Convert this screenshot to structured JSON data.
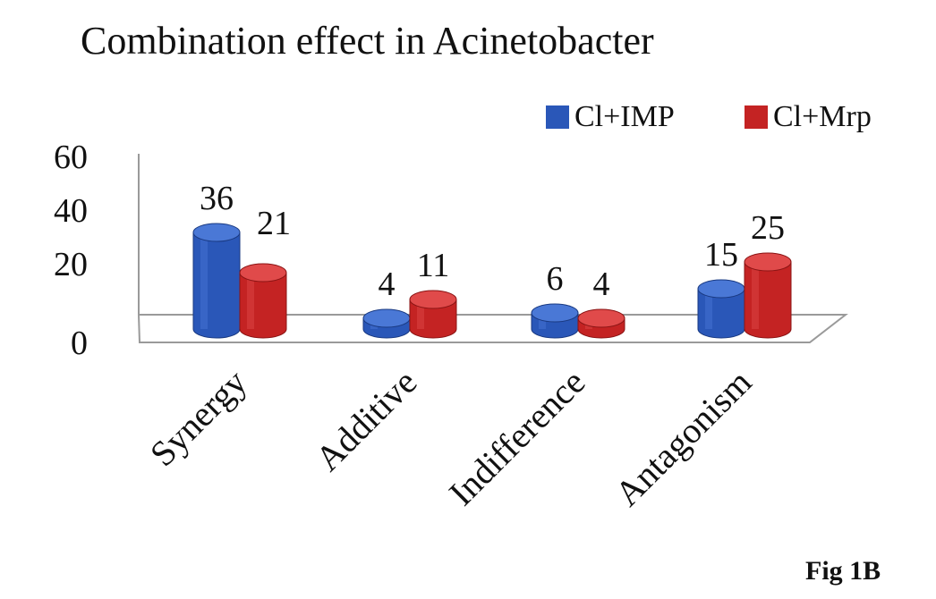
{
  "chart_data": {
    "type": "bar",
    "title": "Combination effect in Acinetobacter",
    "categories": [
      "Synergy",
      "Additive",
      "Indifference",
      "Antagonism"
    ],
    "series": [
      {
        "name": "Cl+IMP",
        "values": [
          36,
          4,
          6,
          15
        ],
        "color": "#2a57b8",
        "dark": "#1a3a82",
        "light": "#4a78d6"
      },
      {
        "name": "Cl+Mrp",
        "values": [
          21,
          11,
          4,
          25
        ],
        "color": "#c42323",
        "dark": "#8a1414",
        "light": "#e04a4a"
      }
    ],
    "yticks": [
      "0",
      "20",
      "40",
      "60"
    ],
    "ylim": [
      0,
      60
    ],
    "legend_position": "top-right",
    "grid": false,
    "style": "3d-cylinder",
    "footer": "Fig 1B"
  }
}
